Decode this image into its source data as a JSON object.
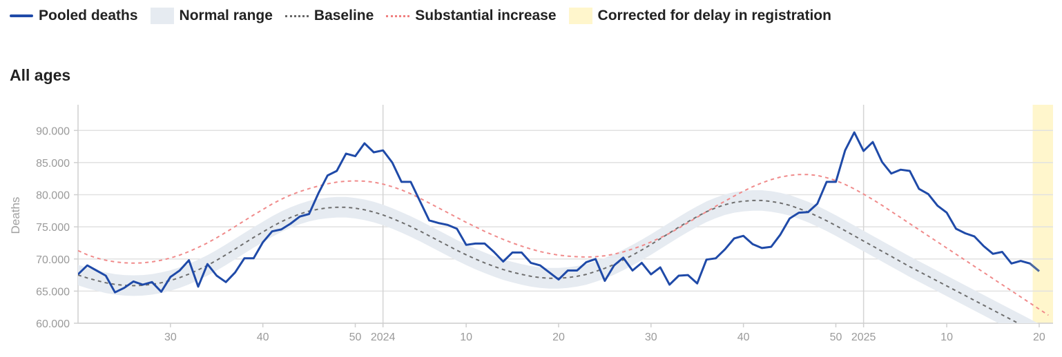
{
  "legend": [
    {
      "label": "Pooled deaths",
      "kind": "line",
      "color": "#1f4aa8"
    },
    {
      "label": "Normal range",
      "kind": "box",
      "color": "#e6ebf1"
    },
    {
      "label": "Baseline",
      "kind": "dash",
      "color": "#666666"
    },
    {
      "label": "Substantial increase",
      "kind": "dash",
      "color": "#f08080"
    },
    {
      "label": "Corrected for delay in registration",
      "kind": "box",
      "color": "#fff6cc"
    }
  ],
  "panel": {
    "title": "All ages"
  },
  "chart_data": {
    "type": "line",
    "title": "All ages",
    "ylabel": "Deaths",
    "ylim": [
      60000,
      94000
    ],
    "yticks": [
      60000,
      65000,
      70000,
      75000,
      80000,
      85000,
      90000
    ],
    "ytick_labels": [
      "60.000",
      "65.000",
      "70.000",
      "75.000",
      "80.000",
      "85.000",
      "90.000"
    ],
    "x_unit": "ISO week (2023 week 22 – 2025 week 22)",
    "xticks": [
      {
        "label": "30",
        "x": 30
      },
      {
        "label": "40",
        "x": 40
      },
      {
        "label": "50",
        "x": 50
      },
      {
        "label": "2024",
        "x": 53,
        "year": true
      },
      {
        "label": "10",
        "x": 62
      },
      {
        "label": "20",
        "x": 72
      },
      {
        "label": "30",
        "x": 82
      },
      {
        "label": "40",
        "x": 92
      },
      {
        "label": "50",
        "x": 102
      },
      {
        "label": "2025",
        "x": 105,
        "year": true
      },
      {
        "label": "10",
        "x": 114
      },
      {
        "label": "20",
        "x": 124
      }
    ],
    "xlim": [
      20,
      125.5
    ],
    "corrected_region": [
      123.3,
      126.3
    ],
    "colors": {
      "pooled": "#1f4aa8",
      "band": "#e6ebf1",
      "baseline": "#6e6e6e",
      "substantial": "#f08a8a",
      "corrected": "#fff6cc"
    },
    "series": [
      {
        "name": "Pooled deaths",
        "x_start": 20,
        "values": [
          67600,
          69000,
          68200,
          67400,
          64800,
          65500,
          66500,
          66000,
          66400,
          64900,
          67200,
          68200,
          69800,
          65700,
          69200,
          67400,
          66400,
          67900,
          70100,
          70100,
          72600,
          74300,
          74600,
          75500,
          76600,
          77000,
          80200,
          83000,
          83700,
          86400,
          86000,
          88000,
          86600,
          86900,
          85000,
          82000,
          82000,
          79000,
          76000,
          75600,
          75300,
          74700,
          72200,
          72400,
          72400,
          71100,
          69600,
          71000,
          71000,
          69400,
          69000,
          67900,
          66800,
          68200,
          68200,
          69500,
          70000,
          66600,
          69000,
          70200,
          68200,
          69400,
          67600,
          68700,
          66000,
          67400,
          67500,
          66200,
          69900,
          70100,
          71500,
          73200,
          73600,
          72300,
          71700,
          71900,
          73800,
          76300,
          77200,
          77300,
          78600,
          82000,
          82000,
          86900,
          89700,
          86800,
          88200,
          85100,
          83300,
          83900,
          83700,
          80900,
          80100,
          78300,
          77200,
          74700,
          74000,
          73500,
          72000,
          70800,
          71100,
          69300,
          69700,
          69300,
          68100
        ]
      },
      {
        "name": "Baseline",
        "x_start": 20,
        "values": [
          67500,
          67050,
          66650,
          66300,
          66050,
          65900,
          65850,
          65900,
          66050,
          66300,
          66650,
          67100,
          67650,
          68300,
          69000,
          69800,
          70650,
          71550,
          72450,
          73350,
          74200,
          75050,
          75800,
          76450,
          77000,
          77450,
          77750,
          77950,
          78050,
          78050,
          77900,
          77650,
          77300,
          76850,
          76300,
          75700,
          75050,
          74350,
          73600,
          72850,
          72100,
          71350,
          70650,
          70000,
          69400,
          68850,
          68350,
          67950,
          67600,
          67300,
          67100,
          67000,
          67000,
          67100,
          67300,
          67600,
          68050,
          68550,
          69150,
          69850,
          70600,
          71400,
          72250,
          73150,
          74050,
          74950,
          75800,
          76600,
          77350,
          77950,
          78450,
          78800,
          79000,
          79100,
          79100,
          78950,
          78700,
          78350,
          77850,
          77300,
          76650,
          75950,
          75200,
          74400,
          73600,
          72800,
          72000,
          71200,
          70400,
          69600,
          68800,
          68050,
          67300,
          66550,
          65800,
          65050,
          64300,
          63550,
          62800,
          62050,
          61300,
          60550,
          59800,
          59050,
          58300,
          57550
        ]
      },
      {
        "name": "Substantial increase",
        "x_start": 20,
        "values": [
          71300,
          70650,
          70150,
          69800,
          69550,
          69400,
          69350,
          69400,
          69550,
          69800,
          70150,
          70600,
          71150,
          71800,
          72500,
          73300,
          74150,
          75050,
          75950,
          76850,
          77700,
          78550,
          79300,
          79950,
          80500,
          80950,
          81350,
          81700,
          81950,
          82100,
          82150,
          82100,
          81950,
          81650,
          81250,
          80750,
          80150,
          79450,
          78700,
          77950,
          77200,
          76450,
          75700,
          75000,
          74300,
          73650,
          73050,
          72500,
          72000,
          71550,
          71150,
          70850,
          70600,
          70450,
          70350,
          70300,
          70350,
          70500,
          70750,
          71100,
          71550,
          72050,
          72650,
          73300,
          74000,
          74800,
          75650,
          76500,
          77350,
          78200,
          79000,
          79800,
          80550,
          81250,
          81850,
          82350,
          82750,
          83000,
          83150,
          83150,
          83000,
          82650,
          82200,
          81600,
          80900,
          80100,
          79250,
          78350,
          77400,
          76450,
          75500,
          74550,
          73600,
          72650,
          71700,
          70750,
          69800,
          68850,
          67900,
          66950,
          66000,
          65050,
          64100,
          63150,
          62200,
          61250
        ]
      }
    ],
    "normal_range": {
      "note": "shaded band approx. ±1.6k around baseline"
    }
  }
}
